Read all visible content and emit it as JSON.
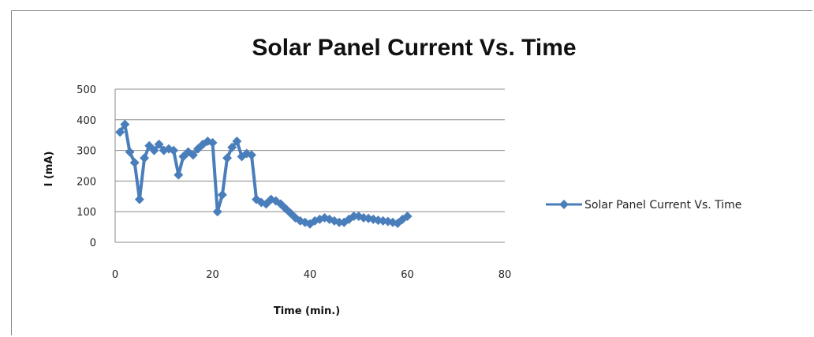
{
  "chart_data": {
    "type": "line",
    "title": "Solar Panel Current Vs. Time",
    "xlabel": "Time (min.)",
    "ylabel": "I (mA)",
    "xlim": [
      0,
      80
    ],
    "ylim": [
      0,
      500
    ],
    "x_ticks": [
      0,
      20,
      40,
      60,
      80
    ],
    "y_ticks": [
      0,
      100,
      200,
      300,
      400,
      500
    ],
    "grid": "horizontal major gridlines",
    "legend_position": "right",
    "series": [
      {
        "name": "Solar Panel Current Vs. Time",
        "color": "#4a7ebb",
        "marker": "diamond",
        "x": [
          1,
          2,
          3,
          4,
          5,
          6,
          7,
          8,
          9,
          10,
          11,
          12,
          13,
          14,
          15,
          16,
          17,
          18,
          19,
          20,
          21,
          22,
          23,
          24,
          25,
          26,
          27,
          28,
          29,
          30,
          31,
          32,
          33,
          34,
          35,
          36,
          37,
          38,
          39,
          40,
          41,
          42,
          43,
          44,
          45,
          46,
          47,
          48,
          49,
          50,
          51,
          52,
          53,
          54,
          55,
          56,
          57,
          58,
          59,
          60
        ],
        "y": [
          360,
          385,
          295,
          260,
          140,
          275,
          315,
          300,
          320,
          300,
          305,
          300,
          220,
          280,
          295,
          285,
          305,
          320,
          330,
          325,
          100,
          155,
          275,
          310,
          330,
          280,
          290,
          285,
          140,
          130,
          125,
          140,
          135,
          125,
          110,
          95,
          80,
          70,
          65,
          60,
          70,
          75,
          80,
          75,
          70,
          65,
          65,
          75,
          85,
          85,
          80,
          78,
          75,
          72,
          70,
          68,
          65,
          62,
          75,
          85
        ]
      }
    ]
  }
}
